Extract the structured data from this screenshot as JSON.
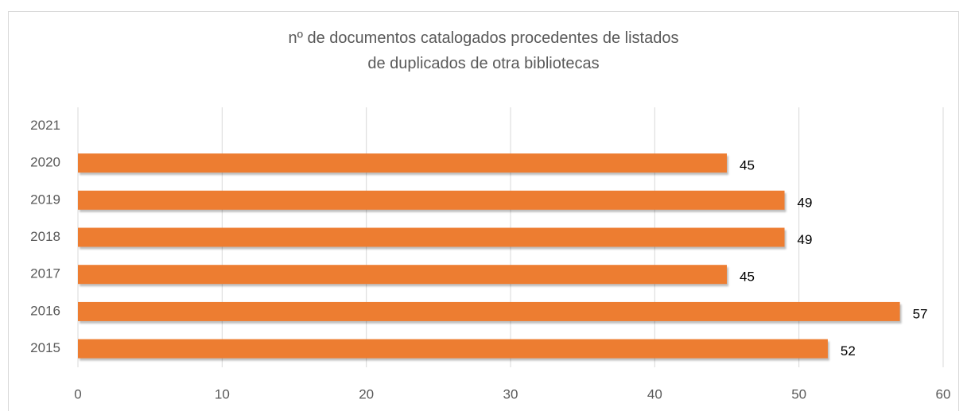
{
  "chart_data": {
    "type": "hbar",
    "title": "nº de documentos catalogados procedentes de listados de duplicados de otra bibliotecas",
    "categories": [
      "2015",
      "2016",
      "2017",
      "2018",
      "2019",
      "2020",
      "2021"
    ],
    "values": [
      52,
      57,
      45,
      49,
      49,
      45,
      null
    ],
    "color": "#ed7d31",
    "xlim": [
      0,
      60
    ],
    "xticks": [
      0,
      10,
      20,
      30,
      40,
      50,
      60
    ],
    "grid": true
  }
}
